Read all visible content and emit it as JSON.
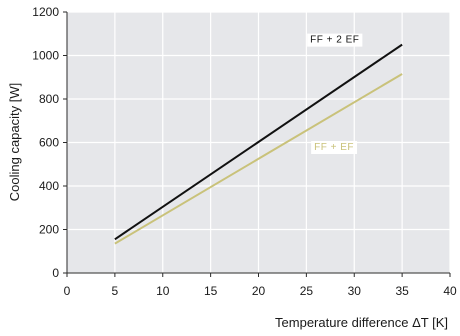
{
  "chart_data": {
    "type": "line",
    "xlabel": "Temperature difference ΔT [K]",
    "ylabel": "Cooling capacity [W]",
    "xlim": [
      0,
      40
    ],
    "ylim": [
      0,
      1200
    ],
    "x_ticks": [
      "0",
      "5",
      "10",
      "15",
      "20",
      "25",
      "30",
      "35",
      "40"
    ],
    "y_ticks": [
      "0",
      "200",
      "400",
      "600",
      "800",
      "1000",
      "1200"
    ],
    "grid": true,
    "plot_background": "#e6e7ea",
    "series": [
      {
        "name": "FF + 2 EF",
        "color": "#111111",
        "x": [
          5,
          35
        ],
        "y": [
          155,
          1050
        ]
      },
      {
        "name": "FF + EF",
        "color": "#c9c27a",
        "x": [
          5,
          35
        ],
        "y": [
          135,
          915
        ]
      }
    ]
  }
}
